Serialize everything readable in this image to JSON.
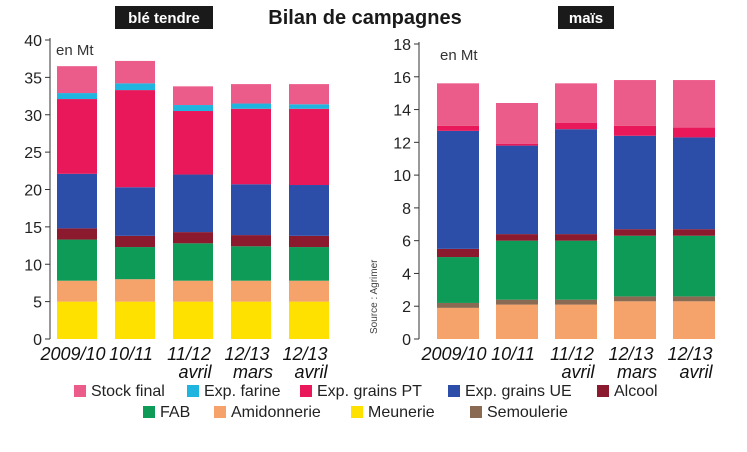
{
  "title": "Bilan de campagnes",
  "source": "Source : Agrimer",
  "legend": [
    {
      "name": "Stock final",
      "color": "#ec5c8a"
    },
    {
      "name": "Exp. farine",
      "color": "#1fb5df"
    },
    {
      "name": "Exp. grains PT",
      "color": "#e8185a"
    },
    {
      "name": "Exp. grains UE",
      "color": "#2c4ea8"
    },
    {
      "name": "Alcool",
      "color": "#8c1a2e"
    },
    {
      "name": "FAB",
      "color": "#0e9a57"
    },
    {
      "name": "Amidonnerie",
      "color": "#f5a26b"
    },
    {
      "name": "Meunerie",
      "color": "#ffe100"
    },
    {
      "name": "Semoulerie",
      "color": "#8a6a52"
    }
  ],
  "chart_data": [
    {
      "type": "bar",
      "stacked": true,
      "badge": "blé tendre",
      "unit_label": "en Mt",
      "ylim": [
        0,
        40
      ],
      "yticks": [
        0,
        5,
        10,
        15,
        20,
        25,
        30,
        35,
        40
      ],
      "categories": [
        {
          "line1": "2009/10",
          "line2": ""
        },
        {
          "line1": "10/11",
          "line2": ""
        },
        {
          "line1": "11/12",
          "line2": "avril"
        },
        {
          "line1": "12/13",
          "line2": "mars"
        },
        {
          "line1": "12/13",
          "line2": "avril"
        }
      ],
      "series": [
        {
          "name": "Meunerie",
          "values": [
            5.0,
            5.0,
            5.0,
            5.0,
            5.0
          ]
        },
        {
          "name": "Amidonnerie",
          "values": [
            2.8,
            3.0,
            2.8,
            2.8,
            2.8
          ]
        },
        {
          "name": "FAB",
          "values": [
            5.5,
            4.3,
            5.0,
            4.6,
            4.5
          ]
        },
        {
          "name": "Alcool",
          "values": [
            1.5,
            1.5,
            1.5,
            1.5,
            1.5
          ]
        },
        {
          "name": "Exp. grains UE",
          "values": [
            7.3,
            6.5,
            7.7,
            6.8,
            6.8
          ]
        },
        {
          "name": "Exp. grains PT",
          "values": [
            10.0,
            13.0,
            8.5,
            10.1,
            10.2
          ]
        },
        {
          "name": "Exp. farine",
          "values": [
            0.8,
            0.9,
            0.8,
            0.7,
            0.6
          ]
        },
        {
          "name": "Stock final",
          "values": [
            3.6,
            3.0,
            2.5,
            2.6,
            2.7
          ]
        }
      ]
    },
    {
      "type": "bar",
      "stacked": true,
      "badge": "maïs",
      "unit_label": "en Mt",
      "ylim": [
        0,
        18
      ],
      "yticks": [
        0,
        2,
        4,
        6,
        8,
        10,
        12,
        14,
        16,
        18
      ],
      "categories": [
        {
          "line1": "2009/10",
          "line2": ""
        },
        {
          "line1": "10/11",
          "line2": ""
        },
        {
          "line1": "11/12",
          "line2": "avril"
        },
        {
          "line1": "12/13",
          "line2": "mars"
        },
        {
          "line1": "12/13",
          "line2": "avril"
        }
      ],
      "series": [
        {
          "name": "Amidonnerie",
          "values": [
            1.9,
            2.1,
            2.1,
            2.3,
            2.3
          ]
        },
        {
          "name": "Semoulerie",
          "values": [
            0.3,
            0.3,
            0.3,
            0.3,
            0.3
          ]
        },
        {
          "name": "FAB",
          "values": [
            2.8,
            3.6,
            3.6,
            3.7,
            3.7
          ]
        },
        {
          "name": "Alcool",
          "values": [
            0.5,
            0.4,
            0.4,
            0.4,
            0.4
          ]
        },
        {
          "name": "Exp. grains UE",
          "values": [
            7.2,
            5.4,
            6.4,
            5.7,
            5.6
          ]
        },
        {
          "name": "Exp. grains PT",
          "values": [
            0.3,
            0.1,
            0.4,
            0.6,
            0.6
          ]
        },
        {
          "name": "Stock final",
          "values": [
            2.6,
            2.5,
            2.4,
            2.8,
            2.9
          ]
        }
      ]
    }
  ]
}
